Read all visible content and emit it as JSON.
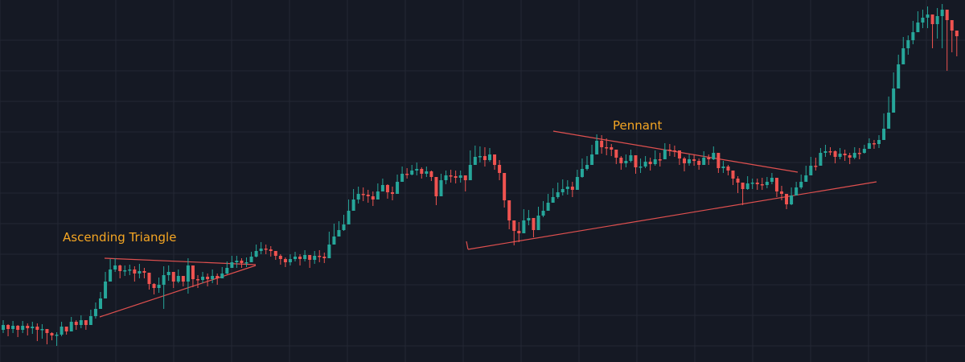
{
  "chart_data": {
    "type": "candlestick",
    "title": "",
    "xlabel": "",
    "ylabel": "",
    "grid": true,
    "y_axis_inverted_scale_note": "",
    "ylim": [
      0,
      450
    ],
    "x_count": 197,
    "colors": {
      "background": "#151924",
      "grid": "#232734",
      "up": "#26a69a",
      "down": "#ef5350",
      "annotation_text": "#f5a623",
      "trendline": "#e0504f"
    },
    "closes": [
      404,
      409,
      405,
      410,
      405,
      408,
      406,
      410,
      409,
      414,
      417,
      416,
      406,
      412,
      400,
      404,
      398,
      404,
      393,
      384,
      371,
      350,
      335,
      330,
      337,
      336,
      335,
      340,
      337,
      339,
      353,
      358,
      354,
      342,
      338,
      350,
      343,
      350,
      330,
      347,
      348,
      344,
      347,
      343,
      346,
      340,
      333,
      326,
      324,
      327,
      326,
      319,
      312,
      309,
      310,
      312,
      318,
      322,
      326,
      322,
      319,
      322,
      317,
      323,
      318,
      319,
      321,
      304,
      294,
      286,
      279,
      262,
      248,
      241,
      242,
      244,
      248,
      238,
      230,
      239,
      241,
      226,
      216,
      217,
      212,
      210,
      216,
      213,
      220,
      244,
      224,
      218,
      219,
      221,
      218,
      224,
      205,
      195,
      194,
      199,
      192,
      205,
      215,
      249,
      274,
      287,
      290,
      274,
      271,
      286,
      268,
      262,
      252,
      245,
      239,
      235,
      232,
      236,
      220,
      210,
      205,
      192,
      175,
      183,
      183,
      186,
      196,
      203,
      200,
      193,
      208,
      207,
      201,
      204,
      198,
      198,
      186,
      187,
      187,
      197,
      203,
      198,
      200,
      205,
      196,
      198,
      190,
      209,
      207,
      212,
      222,
      227,
      235,
      228,
      227,
      229,
      230,
      226,
      221,
      238,
      241,
      254,
      243,
      233,
      226,
      218,
      206,
      206,
      190,
      188,
      188,
      195,
      191,
      193,
      196,
      190,
      190,
      185,
      178,
      179,
      174,
      160,
      140,
      110,
      80,
      60,
      50,
      40,
      28,
      22,
      18,
      30,
      20,
      12,
      25,
      38,
      45
    ],
    "highs": [
      398,
      403,
      399,
      404,
      399,
      402,
      400,
      402,
      403,
      410,
      413,
      413,
      400,
      406,
      394,
      398,
      392,
      398,
      385,
      376,
      363,
      338,
      322,
      321,
      329,
      330,
      329,
      331,
      328,
      333,
      342,
      352,
      345,
      331,
      330,
      340,
      335,
      343,
      321,
      339,
      342,
      338,
      340,
      335,
      340,
      332,
      325,
      318,
      318,
      321,
      320,
      313,
      304,
      301,
      304,
      306,
      312,
      316,
      320,
      316,
      313,
      316,
      311,
      317,
      312,
      311,
      314,
      288,
      278,
      275,
      267,
      248,
      235,
      232,
      233,
      236,
      238,
      228,
      222,
      229,
      232,
      217,
      207,
      209,
      205,
      202,
      208,
      207,
      212,
      234,
      216,
      212,
      211,
      212,
      212,
      218,
      187,
      181,
      182,
      183,
      184,
      192,
      199,
      231,
      262,
      275,
      276,
      260,
      261,
      272,
      257,
      250,
      241,
      234,
      227,
      223,
      224,
      226,
      211,
      197,
      194,
      180,
      167,
      168,
      172,
      179,
      188,
      194,
      192,
      186,
      198,
      197,
      194,
      196,
      187,
      190,
      178,
      179,
      181,
      189,
      195,
      192,
      192,
      197,
      188,
      192,
      182,
      199,
      200,
      205,
      212,
      219,
      227,
      219,
      222,
      222,
      221,
      220,
      215,
      225,
      231,
      245,
      233,
      226,
      217,
      206,
      195,
      196,
      184,
      180,
      183,
      187,
      184,
      186,
      190,
      183,
      184,
      180,
      172,
      174,
      168,
      141,
      120,
      90,
      68,
      46,
      44,
      26,
      14,
      12,
      8,
      20,
      10,
      5,
      15,
      30,
      40
    ],
    "lows": [
      414,
      418,
      414,
      419,
      414,
      417,
      415,
      424,
      421,
      428,
      423,
      430,
      418,
      416,
      408,
      410,
      408,
      410,
      403,
      396,
      380,
      359,
      343,
      338,
      346,
      343,
      342,
      350,
      346,
      346,
      360,
      366,
      364,
      384,
      349,
      358,
      352,
      356,
      365,
      357,
      358,
      352,
      356,
      352,
      354,
      346,
      341,
      332,
      333,
      333,
      332,
      325,
      320,
      316,
      316,
      319,
      323,
      329,
      332,
      330,
      325,
      330,
      325,
      333,
      328,
      326,
      327,
      312,
      304,
      293,
      287,
      278,
      258,
      253,
      250,
      252,
      256,
      245,
      238,
      247,
      249,
      232,
      224,
      222,
      218,
      218,
      222,
      220,
      225,
      255,
      234,
      229,
      227,
      228,
      227,
      238,
      214,
      203,
      202,
      207,
      201,
      211,
      224,
      258,
      285,
      305,
      301,
      286,
      280,
      295,
      277,
      270,
      260,
      252,
      247,
      243,
      242,
      245,
      229,
      221,
      212,
      200,
      183,
      191,
      193,
      194,
      204,
      211,
      208,
      202,
      216,
      215,
      209,
      212,
      206,
      207,
      194,
      194,
      195,
      205,
      213,
      206,
      206,
      211,
      203,
      205,
      199,
      215,
      215,
      218,
      230,
      240,
      255,
      236,
      235,
      236,
      236,
      234,
      229,
      245,
      249,
      260,
      255,
      241,
      235,
      225,
      214,
      212,
      197,
      195,
      193,
      203,
      198,
      200,
      204,
      198,
      198,
      191,
      185,
      185,
      184,
      170,
      150,
      128,
      95,
      75,
      68,
      55,
      40,
      35,
      35,
      60,
      48,
      60,
      88,
      65,
      70
    ]
  },
  "annotations": [
    {
      "id": "ascending-triangle",
      "text": "Ascending Triangle"
    },
    {
      "id": "pennant",
      "text": "Pennant"
    }
  ]
}
